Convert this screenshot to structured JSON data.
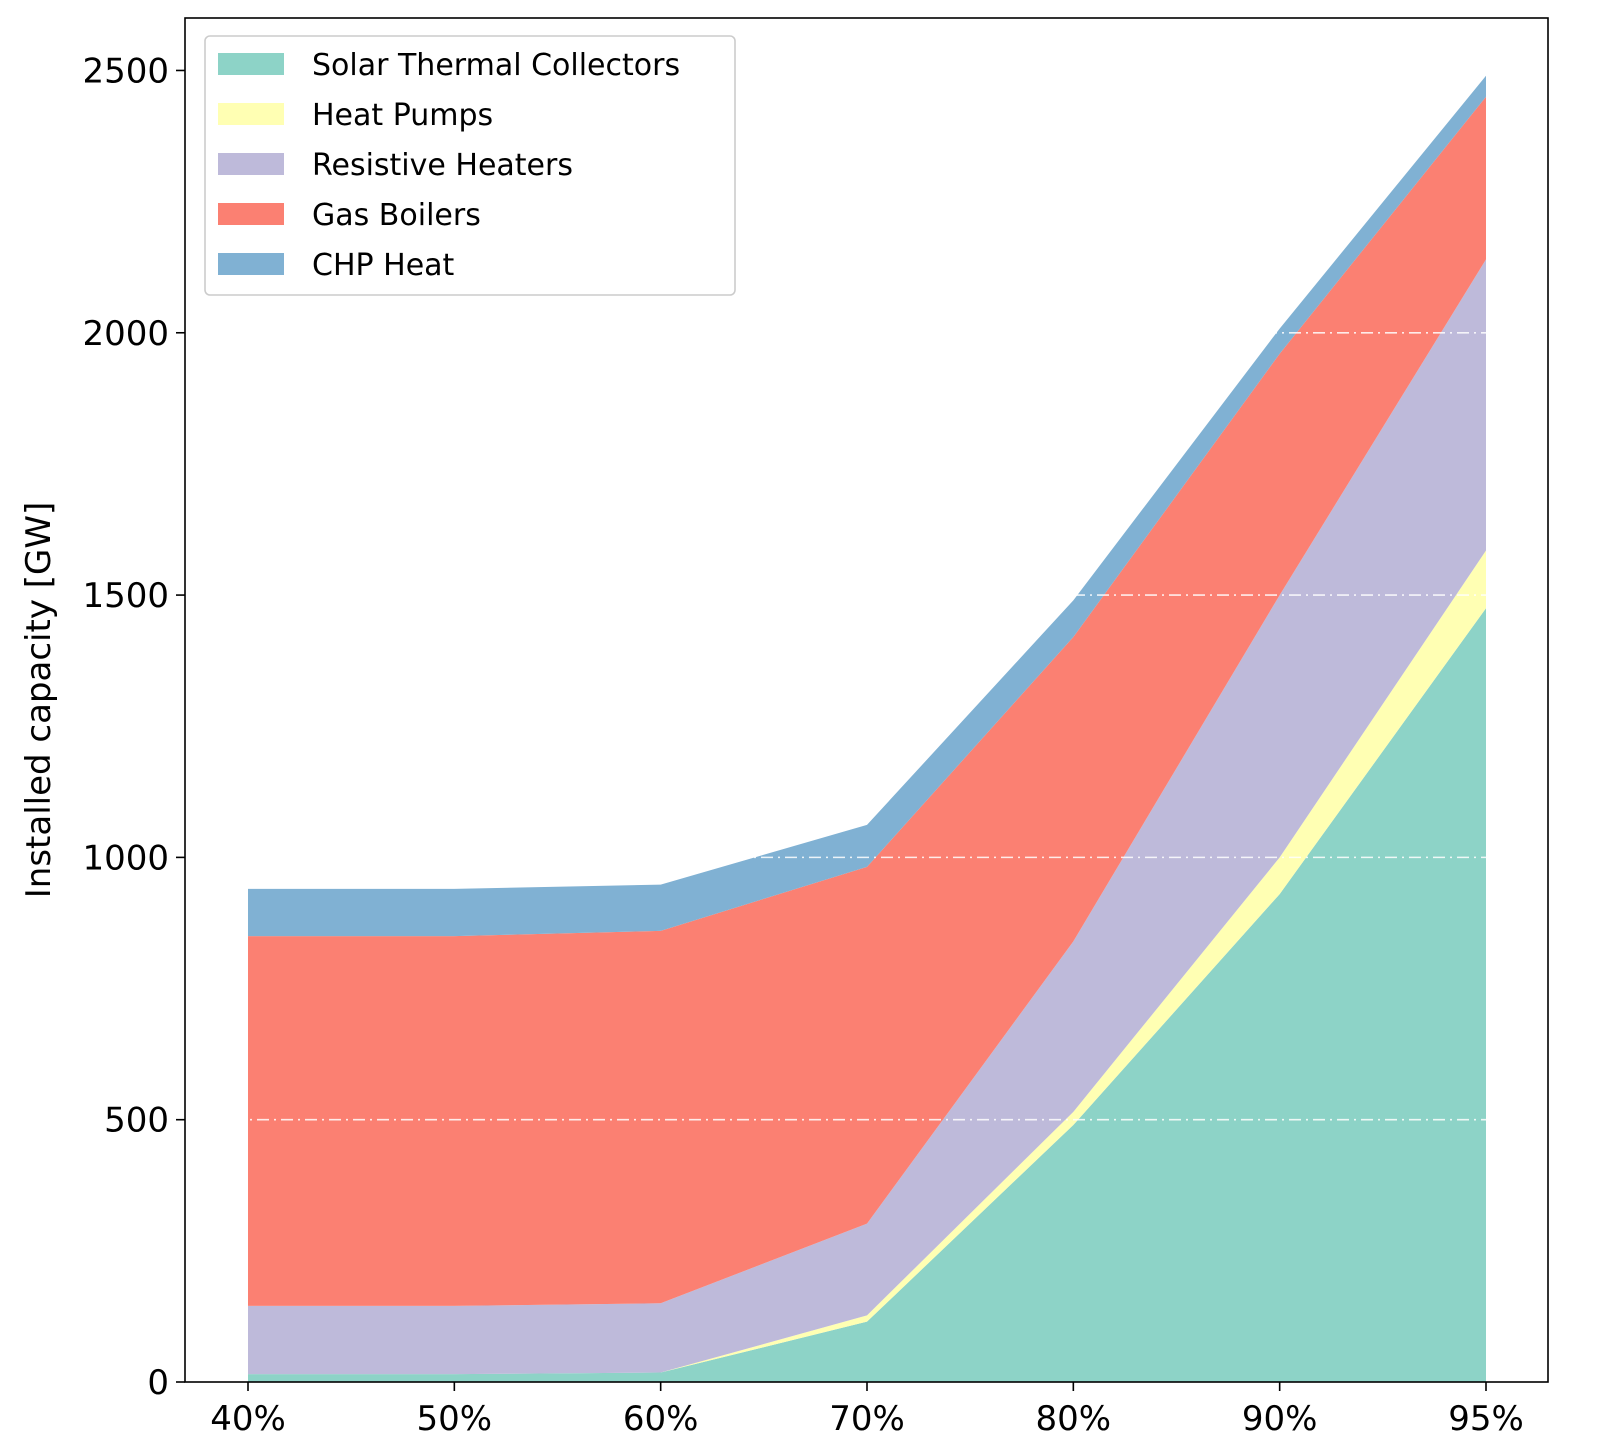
{
  "chart_data": {
    "type": "area",
    "stacked": true,
    "title": "",
    "xlabel": "",
    "ylabel": "Installed capacity [GW]",
    "categories": [
      "40%",
      "50%",
      "60%",
      "70%",
      "80%",
      "90%",
      "95%"
    ],
    "ylim": [
      0,
      2600
    ],
    "yticks": [
      0,
      500,
      1000,
      1500,
      2000,
      2500
    ],
    "grid": "horizontal dash-dot lines at 500, 1000, 1500, 2000 (white)",
    "legend_position": "upper-left",
    "series": [
      {
        "name": "Solar Thermal Collectors",
        "color": "#8dd3c7",
        "values": [
          15,
          15,
          18,
          115,
          490,
          930,
          1475
        ]
      },
      {
        "name": "Heat Pumps",
        "color": "#ffffb3",
        "values": [
          0,
          0,
          0,
          12,
          25,
          70,
          110
        ]
      },
      {
        "name": "Resistive Heaters",
        "color": "#bebada",
        "values": [
          130,
          130,
          132,
          175,
          325,
          500,
          555
        ]
      },
      {
        "name": "Gas Boilers",
        "color": "#fb8072",
        "values": [
          705,
          705,
          710,
          680,
          580,
          460,
          310
        ]
      },
      {
        "name": "CHP Heat",
        "color": "#80b1d3",
        "values": [
          90,
          90,
          88,
          80,
          70,
          48,
          40
        ]
      }
    ]
  }
}
